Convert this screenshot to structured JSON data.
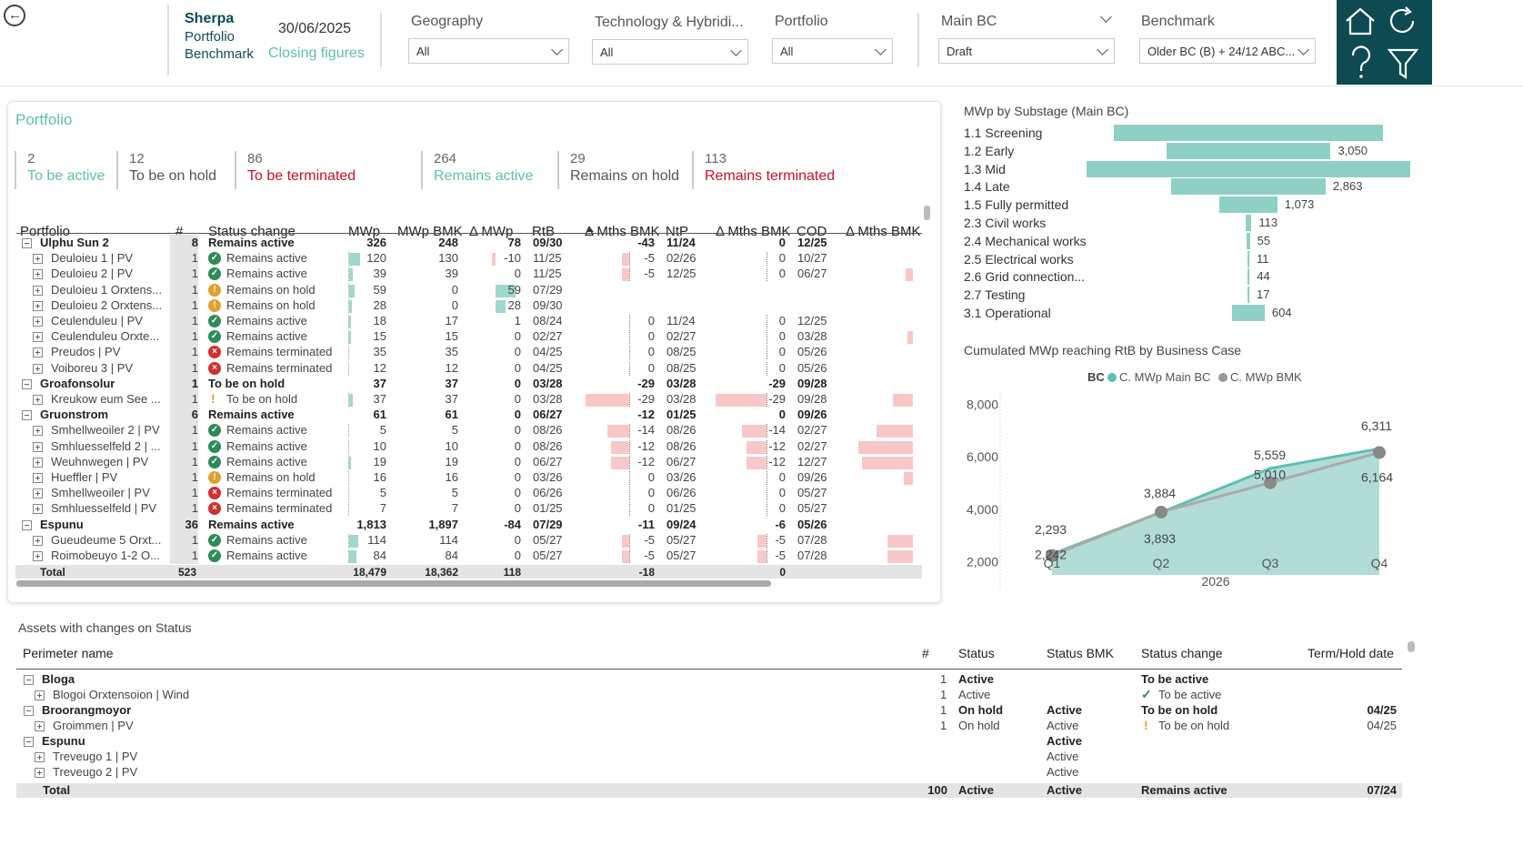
{
  "header": {
    "back_label": "back",
    "brand": "Sherpa",
    "brand_sub1": "Portfolio",
    "brand_sub2": "Benchmark",
    "date": "30/06/2025",
    "closing": "Closing figures",
    "filters": [
      {
        "label": "Geography",
        "value": "All"
      },
      {
        "label": "Technology & Hybridi...",
        "value": "All"
      },
      {
        "label": "Portfolio",
        "value": "All"
      },
      {
        "label": "Main BC",
        "value": "Draft"
      },
      {
        "label": "Benchmark",
        "value": "Older BC (B) + 24/12 ABC..."
      }
    ]
  },
  "portfolio": {
    "title": "Portfolio",
    "kpis": [
      {
        "n": "2",
        "l": "To be active",
        "color": "teal"
      },
      {
        "n": "12",
        "l": "To be on hold",
        "color": "grey"
      },
      {
        "n": "86",
        "l": "To be terminated",
        "color": "red"
      },
      {
        "n": "264",
        "l": "Remains active",
        "color": "teal"
      },
      {
        "n": "29",
        "l": "Remains on hold",
        "color": "grey"
      },
      {
        "n": "113",
        "l": "Remains terminated",
        "color": "red"
      }
    ],
    "columns": [
      "Portfolio",
      "#",
      "Status change",
      "MWp",
      "MWp BMK",
      "Δ MWp",
      "RtB",
      "Δ Mths BMK",
      "NtP",
      "Δ Mths BMK",
      "COD",
      "Δ Mths BMK"
    ],
    "rows": [
      {
        "lvl": 0,
        "name": "Ulphu Sun 2",
        "n": "8",
        "st": "",
        "sc": "Remains active",
        "mwp": "326",
        "bmk": "248",
        "d": "78",
        "rtb": "09/30",
        "dm1": "-43",
        "ntp": "11/24",
        "dm2": "0",
        "cod": "12/25",
        "b1": 0,
        "b2": 0,
        "b3": 0
      },
      {
        "lvl": 1,
        "name": "Deuloieu 1 | PV",
        "n": "1",
        "st": "ok",
        "sc": "Remains active",
        "mwp": "120",
        "bmk": "130",
        "d": "-10",
        "rtb": "11/25",
        "dm1": "-5",
        "ntp": "02/26",
        "dm2": "0",
        "cod": "10/27",
        "mb": 12,
        "db": -4,
        "b1": 8,
        "b2": 0,
        "b3": 0
      },
      {
        "lvl": 1,
        "name": "Deuloieu 2 | PV",
        "n": "1",
        "st": "ok",
        "sc": "Remains active",
        "mwp": "39",
        "bmk": "39",
        "d": "0",
        "rtb": "11/25",
        "dm1": "-5",
        "ntp": "12/25",
        "dm2": "0",
        "cod": "06/27",
        "mb": 4,
        "db": 0,
        "b1": 8,
        "b2": 0,
        "b3": 8
      },
      {
        "lvl": 1,
        "name": "Deuloieu 1 Orxtens...",
        "n": "1",
        "st": "hold",
        "sc": "Remains on hold",
        "mwp": "59",
        "bmk": "0",
        "d": "59",
        "rtb": "07/29",
        "dm1": "",
        "ntp": "",
        "dm2": "",
        "cod": "",
        "mb": 6,
        "db": 22,
        "b1": 0,
        "b2": 0,
        "b3": 0
      },
      {
        "lvl": 1,
        "name": "Deuloieu 2 Orxtens...",
        "n": "1",
        "st": "hold",
        "sc": "Remains on hold",
        "mwp": "28",
        "bmk": "0",
        "d": "28",
        "rtb": "09/30",
        "dm1": "",
        "ntp": "",
        "dm2": "",
        "cod": "",
        "mb": 3,
        "db": 11,
        "b1": 0,
        "b2": 0,
        "b3": 0
      },
      {
        "lvl": 1,
        "name": "Ceulenduleu | PV",
        "n": "1",
        "st": "ok",
        "sc": "Remains active",
        "mwp": "18",
        "bmk": "17",
        "d": "1",
        "rtb": "08/24",
        "dm1": "0",
        "ntp": "11/24",
        "dm2": "0",
        "cod": "12/25",
        "mb": 2,
        "db": 0,
        "b1": 0,
        "b2": 0,
        "b3": 0
      },
      {
        "lvl": 1,
        "name": "Ceulenduleu Orxte...",
        "n": "1",
        "st": "ok",
        "sc": "Remains active",
        "mwp": "15",
        "bmk": "15",
        "d": "0",
        "rtb": "02/27",
        "dm1": "0",
        "ntp": "02/27",
        "dm2": "0",
        "cod": "03/28",
        "mb": 2,
        "db": 0,
        "b1": 0,
        "b2": 0,
        "b3": 6
      },
      {
        "lvl": 1,
        "name": "Preudos | PV",
        "n": "1",
        "st": "term",
        "sc": "Remains terminated",
        "mwp": "35",
        "bmk": "35",
        "d": "0",
        "rtb": "04/25",
        "dm1": "0",
        "ntp": "08/25",
        "dm2": "0",
        "cod": "05/26",
        "mb": 0,
        "db": 0,
        "b1": 0,
        "b2": 0,
        "b3": 0
      },
      {
        "lvl": 1,
        "name": "Voiboreu 3 | PV",
        "n": "1",
        "st": "term",
        "sc": "Remains terminated",
        "mwp": "12",
        "bmk": "12",
        "d": "0",
        "rtb": "04/25",
        "dm1": "0",
        "ntp": "08/25",
        "dm2": "0",
        "cod": "05/26",
        "mb": 0,
        "db": 0,
        "b1": 0,
        "b2": 0,
        "b3": 0
      },
      {
        "lvl": 0,
        "name": "Groafonsolur",
        "n": "1",
        "st": "",
        "sc": "To be on hold",
        "mwp": "37",
        "bmk": "37",
        "d": "0",
        "rtb": "03/28",
        "dm1": "-29",
        "ntp": "03/28",
        "dm2": "-29",
        "cod": "09/28",
        "b1": 0,
        "b2": 0,
        "b3": 0
      },
      {
        "lvl": 1,
        "name": "Kreukow eum See ...",
        "n": "1",
        "st": "excl",
        "sc": "To be on hold",
        "mwp": "37",
        "bmk": "37",
        "d": "0",
        "rtb": "03/28",
        "dm1": "-29",
        "ntp": "03/28",
        "dm2": "-29",
        "cod": "09/28",
        "mb": 4,
        "db": 0,
        "b1": 48,
        "b2": 56,
        "b3": 22
      },
      {
        "lvl": 0,
        "name": "Gruonstrom",
        "n": "6",
        "st": "",
        "sc": "Remains active",
        "mwp": "61",
        "bmk": "61",
        "d": "0",
        "rtb": "06/27",
        "dm1": "-12",
        "ntp": "01/25",
        "dm2": "0",
        "cod": "09/26",
        "b1": 0,
        "b2": 0,
        "b3": 0
      },
      {
        "lvl": 1,
        "name": "Smhellweoiler 2 | PV",
        "n": "1",
        "st": "ok",
        "sc": "Remains active",
        "mwp": "5",
        "bmk": "5",
        "d": "0",
        "rtb": "08/26",
        "dm1": "-14",
        "ntp": "08/26",
        "dm2": "-14",
        "cod": "02/27",
        "mb": 0,
        "db": 0,
        "b1": 24,
        "b2": 27,
        "b3": 40
      },
      {
        "lvl": 1,
        "name": "Smhluesselfeld 2 | ...",
        "n": "1",
        "st": "ok",
        "sc": "Remains active",
        "mwp": "10",
        "bmk": "10",
        "d": "0",
        "rtb": "08/26",
        "dm1": "-12",
        "ntp": "08/26",
        "dm2": "-12",
        "cod": "02/27",
        "mb": 0,
        "db": 0,
        "b1": 20,
        "b2": 22,
        "b3": 60
      },
      {
        "lvl": 1,
        "name": "Weuhnwegen | PV",
        "n": "1",
        "st": "ok",
        "sc": "Remains active",
        "mwp": "19",
        "bmk": "19",
        "d": "0",
        "rtb": "06/27",
        "dm1": "-12",
        "ntp": "06/27",
        "dm2": "-12",
        "cod": "12/27",
        "mb": 2,
        "db": 0,
        "b1": 20,
        "b2": 22,
        "b3": 56
      },
      {
        "lvl": 1,
        "name": "Hueffler | PV",
        "n": "1",
        "st": "hold",
        "sc": "Remains on hold",
        "mwp": "16",
        "bmk": "16",
        "d": "0",
        "rtb": "03/26",
        "dm1": "0",
        "ntp": "03/26",
        "dm2": "0",
        "cod": "09/26",
        "mb": 0,
        "db": 0,
        "b1": 0,
        "b2": 0,
        "b3": 10
      },
      {
        "lvl": 1,
        "name": "Smhellweoiler | PV",
        "n": "1",
        "st": "term",
        "sc": "Remains terminated",
        "mwp": "5",
        "bmk": "5",
        "d": "0",
        "rtb": "06/26",
        "dm1": "0",
        "ntp": "06/26",
        "dm2": "0",
        "cod": "05/27",
        "mb": 0,
        "db": 0,
        "b1": 0,
        "b2": 0,
        "b3": 0
      },
      {
        "lvl": 1,
        "name": "Smhluesselfeld | PV",
        "n": "1",
        "st": "term",
        "sc": "Remains terminated",
        "mwp": "7",
        "bmk": "7",
        "d": "0",
        "rtb": "01/25",
        "dm1": "0",
        "ntp": "01/25",
        "dm2": "0",
        "cod": "05/27",
        "mb": 0,
        "db": 0,
        "b1": 0,
        "b2": 0,
        "b3": 0
      },
      {
        "lvl": 0,
        "name": "Espunu",
        "n": "36",
        "st": "",
        "sc": "Remains active",
        "mwp": "1,813",
        "bmk": "1,897",
        "d": "-84",
        "rtb": "07/29",
        "dm1": "-11",
        "ntp": "09/24",
        "dm2": "-6",
        "cod": "05/26",
        "b1": 0,
        "b2": 0,
        "b3": 0
      },
      {
        "lvl": 1,
        "name": "Gueudeume 5 Orxt...",
        "n": "1",
        "st": "ok",
        "sc": "Remains active",
        "mwp": "114",
        "bmk": "114",
        "d": "0",
        "rtb": "05/27",
        "dm1": "-5",
        "ntp": "05/27",
        "dm2": "-5",
        "cod": "07/28",
        "mb": 10,
        "db": 0,
        "b1": 8,
        "b2": 10,
        "b3": 28
      },
      {
        "lvl": 1,
        "name": "Roimobeuyo 1-2 O...",
        "n": "1",
        "st": "ok",
        "sc": "Remains active",
        "mwp": "84",
        "bmk": "84",
        "d": "0",
        "rtb": "05/27",
        "dm1": "-5",
        "ntp": "05/27",
        "dm2": "-5",
        "cod": "07/28",
        "mb": 8,
        "db": 0,
        "b1": 8,
        "b2": 10,
        "b3": 28
      }
    ],
    "total": {
      "name": "Total",
      "n": "523",
      "mwp": "18,479",
      "bmk": "18,362",
      "d": "118",
      "dm1": "-18",
      "dm2": "0"
    }
  },
  "substage": {
    "title": "MWp by Substage (Main BC)",
    "items": [
      {
        "label": "1.1 Screening",
        "value": 5000,
        "text": ""
      },
      {
        "label": "1.2 Early",
        "value": 3050,
        "text": "3,050"
      },
      {
        "label": "1.3 Mid",
        "value": 6000,
        "text": ""
      },
      {
        "label": "1.4 Late",
        "value": 2863,
        "text": "2,863"
      },
      {
        "label": "1.5 Fully permitted",
        "value": 1073,
        "text": "1,073"
      },
      {
        "label": "2.3 Civil works",
        "value": 113,
        "text": "113"
      },
      {
        "label": "2.4 Mechanical works",
        "value": 55,
        "text": "55"
      },
      {
        "label": "2.5 Electrical works",
        "value": 11,
        "text": "11"
      },
      {
        "label": "2.6 Grid connection...",
        "value": 44,
        "text": "44"
      },
      {
        "label": "2.7 Testing",
        "value": 17,
        "text": "17"
      },
      {
        "label": "3.1 Operational",
        "value": 604,
        "text": "604"
      }
    ]
  },
  "chart_data": {
    "type": "area",
    "title": "Cumulated MWp reaching RtB by Business Case",
    "legend_title": "BC",
    "legend_placement": "top",
    "categories": [
      "Q1",
      "Q2",
      "Q3",
      "Q4"
    ],
    "xlabel": "2026",
    "ylim": [
      1500,
      8500
    ],
    "yticks": [
      "2,000",
      "4,000",
      "6,000",
      "8,000"
    ],
    "ytick_values": [
      2000,
      4000,
      6000,
      8000
    ],
    "series": [
      {
        "name": "C. MWp Main BC",
        "values": [
          2293,
          3884,
          5559,
          6311
        ],
        "labels": [
          "2,293",
          "3,884",
          "5,559",
          "6,311"
        ],
        "color": "#5fbfb0"
      },
      {
        "name": "C. MWp BMK",
        "values": [
          2242,
          3893,
          5010,
          6164
        ],
        "labels": [
          "2,242",
          "3,893",
          "5,010",
          "6,164"
        ],
        "color": "#888888"
      }
    ]
  },
  "assets": {
    "title": "Assets with changes on Status",
    "columns": [
      "Perimeter name",
      "#",
      "Status",
      "Status BMK",
      "Status change",
      "Term/Hold date"
    ],
    "rows": [
      {
        "lvl": 0,
        "name": "Bloga",
        "n": "1",
        "st": "Active",
        "bmk": "",
        "sc": "To be active",
        "dt": "",
        "icon": ""
      },
      {
        "lvl": 1,
        "name": "Blogoi Orxtensoion | Wind",
        "n": "1",
        "st": "Active",
        "bmk": "",
        "sc": "To be active",
        "dt": "",
        "icon": "check"
      },
      {
        "lvl": 0,
        "name": "Broorangmoyor",
        "n": "1",
        "st": "On hold",
        "bmk": "Active",
        "sc": "To be on hold",
        "dt": "04/25",
        "icon": ""
      },
      {
        "lvl": 1,
        "name": "Groimmen | PV",
        "n": "1",
        "st": "On hold",
        "bmk": "Active",
        "sc": "To be on hold",
        "dt": "04/25",
        "icon": "excl"
      },
      {
        "lvl": 0,
        "name": "Espunu",
        "n": "",
        "st": "",
        "bmk": "Active",
        "sc": "",
        "dt": "",
        "icon": ""
      },
      {
        "lvl": 1,
        "name": "Treveugo 1 | PV",
        "n": "",
        "st": "",
        "bmk": "Active",
        "sc": "",
        "dt": "",
        "icon": ""
      },
      {
        "lvl": 1,
        "name": "Treveugo 2 | PV",
        "n": "",
        "st": "",
        "bmk": "Active",
        "sc": "",
        "dt": "",
        "icon": ""
      }
    ],
    "total": {
      "name": "Total",
      "n": "100",
      "st": "Active",
      "bmk": "Active",
      "sc": "Remains active",
      "dt": "07/24"
    }
  }
}
